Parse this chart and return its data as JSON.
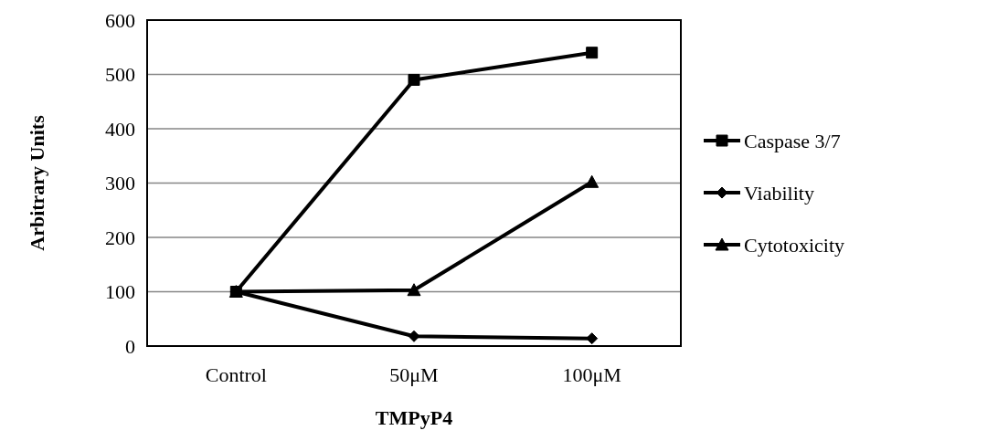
{
  "chart_data": {
    "type": "line",
    "xlabel": "TMPyP4",
    "ylabel": "Arbitrary Units",
    "categories": [
      "Control",
      "50μM",
      "100μM"
    ],
    "series": [
      {
        "name": "Caspase 3/7",
        "color": "#000000",
        "marker": "square",
        "values": [
          100,
          490,
          540
        ]
      },
      {
        "name": "Viability",
        "color": "#000000",
        "marker": "diamond",
        "values": [
          100,
          18,
          14
        ]
      },
      {
        "name": "Cytotoxicity",
        "color": "#000000",
        "marker": "triangle",
        "values": [
          100,
          103,
          302
        ]
      }
    ],
    "ylim": [
      0,
      600
    ],
    "yticks": [
      0,
      100,
      200,
      300,
      400,
      500,
      600
    ],
    "grid": "y",
    "legend": "right",
    "line_style": "solid"
  }
}
